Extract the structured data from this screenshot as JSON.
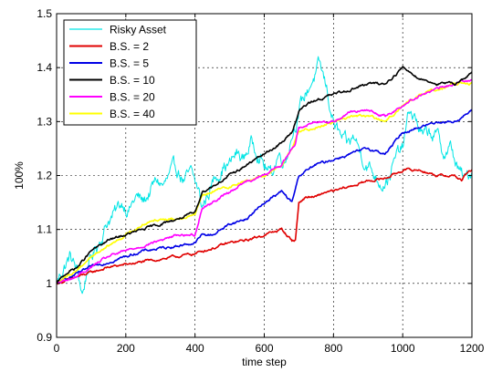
{
  "chart_data": {
    "type": "line",
    "xlabel": "time step",
    "ylabel": "100%",
    "xlim": [
      0,
      1200
    ],
    "ylim": [
      0.9,
      1.5
    ],
    "x_ticks": [
      0,
      200,
      400,
      600,
      800,
      1000,
      1200
    ],
    "y_ticks": [
      0.9,
      1,
      1.1,
      1.2,
      1.3,
      1.4,
      1.5
    ],
    "x_tick_labels": [
      "0",
      "200",
      "400",
      "600",
      "800",
      "1000",
      "1200"
    ],
    "y_tick_labels": [
      "0.9",
      "1",
      "1.1",
      "1.2",
      "1.3",
      "1.4",
      "1.5"
    ],
    "grid": true,
    "legend_position": "top-left",
    "series": [
      {
        "name": "Risky Asset",
        "color": "#00e5e5",
        "noise": 0.012,
        "x": [
          0,
          20,
          40,
          60,
          75,
          90,
          110,
          130,
          150,
          170,
          190,
          210,
          230,
          250,
          270,
          290,
          310,
          330,
          350,
          370,
          390,
          410,
          420,
          440,
          460,
          480,
          500,
          520,
          540,
          560,
          580,
          600,
          620,
          640,
          660,
          680,
          700,
          720,
          740,
          760,
          780,
          800,
          820,
          840,
          860,
          880,
          900,
          920,
          940,
          960,
          980,
          1000,
          1020,
          1040,
          1060,
          1080,
          1100,
          1120,
          1140,
          1160,
          1180,
          1200
        ],
        "y": [
          1.0,
          1.03,
          1.05,
          1.02,
          0.98,
          1.03,
          1.06,
          1.09,
          1.12,
          1.13,
          1.15,
          1.14,
          1.16,
          1.15,
          1.17,
          1.19,
          1.18,
          1.2,
          1.21,
          1.19,
          1.2,
          1.17,
          1.14,
          1.17,
          1.2,
          1.22,
          1.22,
          1.24,
          1.23,
          1.26,
          1.25,
          1.22,
          1.2,
          1.24,
          1.23,
          1.28,
          1.32,
          1.35,
          1.38,
          1.4,
          1.36,
          1.3,
          1.27,
          1.25,
          1.27,
          1.24,
          1.22,
          1.2,
          1.19,
          1.2,
          1.23,
          1.25,
          1.32,
          1.3,
          1.27,
          1.28,
          1.27,
          1.24,
          1.25,
          1.21,
          1.19,
          1.21
        ]
      },
      {
        "name": "B.S. = 2",
        "color": "#e00000",
        "noise": 0.002,
        "x": [
          0,
          50,
          100,
          150,
          200,
          250,
          300,
          350,
          400,
          420,
          450,
          500,
          550,
          600,
          650,
          680,
          690,
          700,
          720,
          750,
          780,
          800,
          850,
          900,
          950,
          1000,
          1050,
          1100,
          1150,
          1170,
          1180,
          1200
        ],
        "y": [
          1.0,
          1.01,
          1.02,
          1.03,
          1.035,
          1.04,
          1.045,
          1.05,
          1.055,
          1.06,
          1.065,
          1.075,
          1.08,
          1.09,
          1.1,
          1.08,
          1.08,
          1.15,
          1.16,
          1.16,
          1.17,
          1.17,
          1.18,
          1.19,
          1.195,
          1.21,
          1.21,
          1.2,
          1.2,
          1.19,
          1.2,
          1.21
        ]
      },
      {
        "name": "B.S. = 5",
        "color": "#0000e6",
        "noise": 0.002,
        "x": [
          0,
          50,
          100,
          150,
          200,
          250,
          300,
          350,
          400,
          420,
          450,
          500,
          550,
          600,
          650,
          680,
          700,
          750,
          800,
          850,
          900,
          950,
          1000,
          1050,
          1100,
          1150,
          1200
        ],
        "y": [
          1.0,
          1.015,
          1.03,
          1.04,
          1.05,
          1.06,
          1.065,
          1.07,
          1.075,
          1.09,
          1.09,
          1.11,
          1.12,
          1.15,
          1.17,
          1.15,
          1.2,
          1.22,
          1.23,
          1.24,
          1.25,
          1.24,
          1.28,
          1.29,
          1.3,
          1.3,
          1.32
        ]
      },
      {
        "name": "B.S. = 10",
        "color": "#000000",
        "noise": 0.002,
        "x": [
          0,
          30,
          60,
          100,
          150,
          200,
          250,
          300,
          350,
          400,
          420,
          450,
          500,
          550,
          600,
          650,
          680,
          700,
          720,
          750,
          800,
          850,
          900,
          950,
          1000,
          1050,
          1100,
          1150,
          1200
        ],
        "y": [
          1.0,
          1.02,
          1.03,
          1.06,
          1.08,
          1.09,
          1.1,
          1.11,
          1.12,
          1.13,
          1.17,
          1.18,
          1.2,
          1.22,
          1.24,
          1.26,
          1.28,
          1.32,
          1.33,
          1.34,
          1.35,
          1.36,
          1.37,
          1.37,
          1.4,
          1.38,
          1.37,
          1.37,
          1.39
        ]
      },
      {
        "name": "B.S. = 20",
        "color": "#ff00ff",
        "noise": 0.002,
        "x": [
          0,
          50,
          100,
          150,
          200,
          250,
          300,
          350,
          400,
          420,
          450,
          500,
          550,
          600,
          650,
          690,
          700,
          750,
          800,
          850,
          900,
          950,
          1000,
          1050,
          1100,
          1150,
          1200
        ],
        "y": [
          1.0,
          1.01,
          1.03,
          1.05,
          1.06,
          1.07,
          1.08,
          1.09,
          1.09,
          1.14,
          1.15,
          1.17,
          1.19,
          1.2,
          1.22,
          1.26,
          1.29,
          1.3,
          1.3,
          1.32,
          1.32,
          1.31,
          1.33,
          1.35,
          1.36,
          1.37,
          1.38
        ]
      },
      {
        "name": "B.S. = 40",
        "color": "#ffff00",
        "noise": 0.002,
        "x": [
          0,
          50,
          100,
          150,
          200,
          250,
          300,
          350,
          400,
          420,
          450,
          500,
          550,
          600,
          650,
          680,
          700,
          750,
          800,
          850,
          900,
          950,
          1000,
          1050,
          1100,
          1150,
          1200
        ],
        "y": [
          1.0,
          1.02,
          1.05,
          1.07,
          1.09,
          1.11,
          1.12,
          1.12,
          1.13,
          1.16,
          1.17,
          1.18,
          1.19,
          1.2,
          1.22,
          1.25,
          1.28,
          1.29,
          1.3,
          1.31,
          1.31,
          1.3,
          1.33,
          1.35,
          1.36,
          1.37,
          1.37
        ]
      }
    ]
  }
}
